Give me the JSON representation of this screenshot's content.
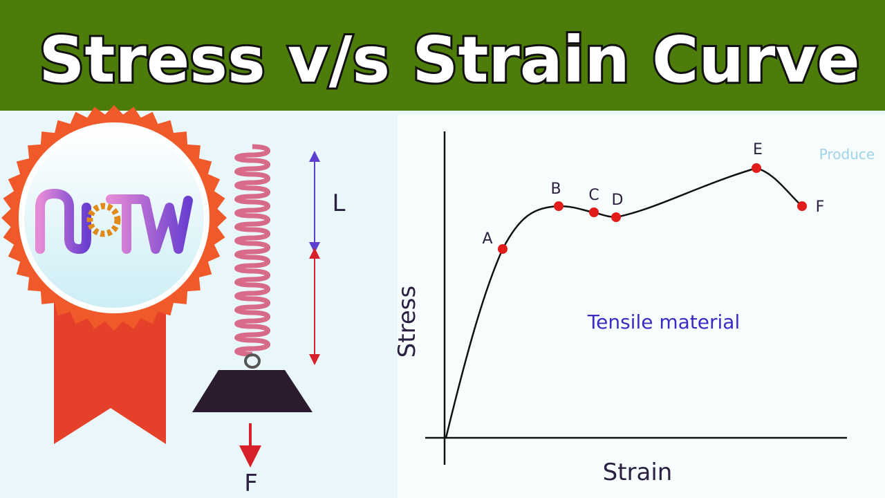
{
  "header": {
    "title": "Stress v/s Strain Curve"
  },
  "spring": {
    "length_label": "L",
    "force_label": "F"
  },
  "graph": {
    "y_label": "Stress",
    "x_label": "Strain",
    "caption": "Tensile material",
    "points": [
      "A",
      "B",
      "C",
      "D",
      "E",
      "F"
    ],
    "watermark": "Produce"
  }
}
